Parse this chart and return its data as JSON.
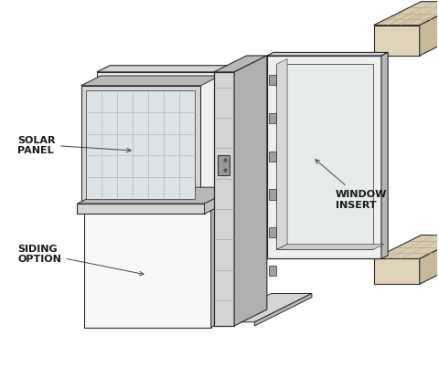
{
  "bg_color": "#ffffff",
  "lc": "#2a2a2a",
  "fill_white": "#f5f5f5",
  "fill_light": "#efefef",
  "fill_lighter": "#f8f8f8",
  "fill_mid": "#d5d5d5",
  "fill_dark": "#b8b8b8",
  "fill_vdark": "#a0a0a0",
  "fill_solar_face": "#dce4ea",
  "fill_solar_grid": "#c8d4dc",
  "fill_glass": "#e5ecea",
  "fill_wood_top": "#d8cbb0",
  "fill_wood_side": "#c8b898",
  "fill_wood_front": "#e0d4b8",
  "labels": {
    "solar_panel": "SOLAR\nPANEL",
    "siding_option": "SIDING\nOPTION",
    "window_insert": "WINDOW\nINSERT"
  }
}
